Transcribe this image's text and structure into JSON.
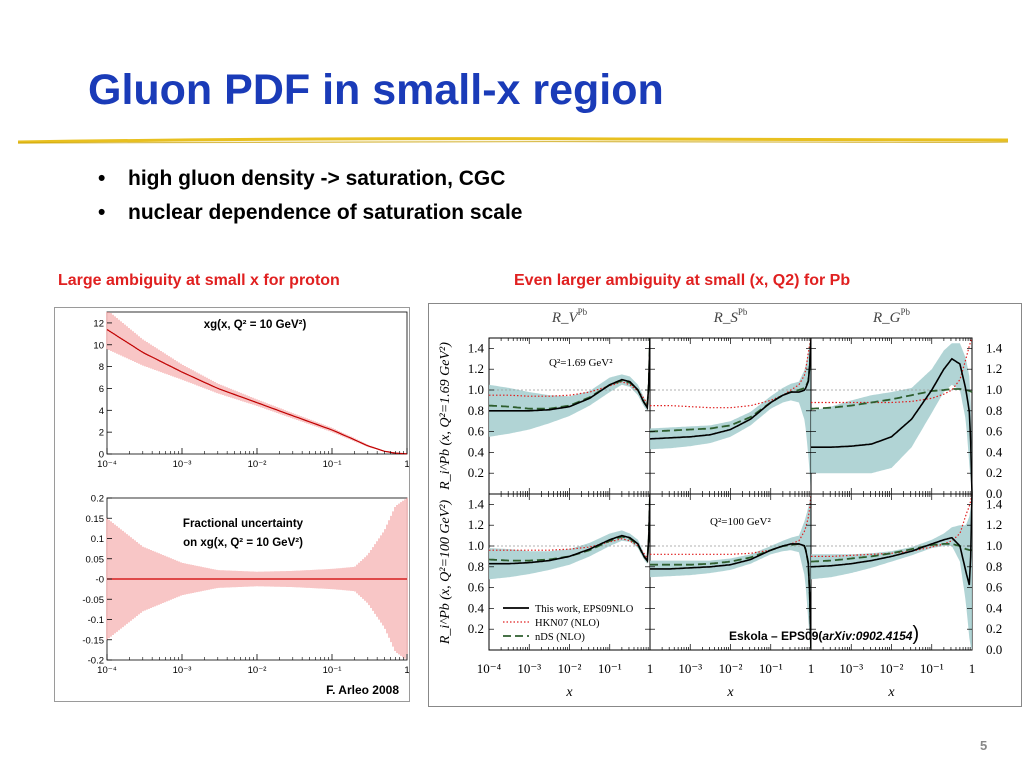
{
  "slide": {
    "title": "Gluon PDF in small-x region",
    "bullets": [
      "high gluon density -> saturation, CGC",
      "nuclear dependence of saturation scale"
    ],
    "caption_left": "Large ambiguity at small x for proton",
    "caption_right": "Even larger ambiguity at small (x, Q2) for Pb",
    "credit_left": "F. Arleo 2008",
    "credit_right_prefix": "Eskola – EPS09(",
    "credit_right_ref": "arXiv:0902.4154",
    "credit_right_suffix": ")",
    "page_number": "5",
    "colors": {
      "title": "#1a3bb8",
      "caption": "#e02020",
      "rule_gold": "#e8c020",
      "band_red": "#f08080",
      "band_teal": "#a9cfd0"
    }
  },
  "chart_data": [
    {
      "id": "proton-xg",
      "type": "line",
      "title": "xg(x, Q² = 10 GeV²)",
      "x_scale": "log",
      "xlim": [
        0.0001,
        1
      ],
      "ylim": [
        0,
        13
      ],
      "x_ticks": [
        0.0001,
        0.001,
        0.01,
        0.1,
        1
      ],
      "x_tick_labels": [
        "10⁻⁴",
        "10⁻³",
        "10⁻²",
        "10⁻¹",
        "1"
      ],
      "y_ticks": [
        0,
        2,
        4,
        6,
        8,
        10,
        12
      ],
      "y_tick_labels": [
        "0",
        "2",
        "4",
        "6",
        "8",
        "10",
        "12"
      ],
      "xlabel": "x",
      "x": [
        0.0001,
        0.0003,
        0.001,
        0.003,
        0.01,
        0.03,
        0.1,
        0.2,
        0.3,
        0.5,
        0.7,
        1.0
      ],
      "central": [
        11.4,
        9.3,
        7.5,
        6.0,
        4.7,
        3.5,
        2.2,
        1.3,
        0.75,
        0.25,
        0.08,
        0.02
      ],
      "err": [
        1.8,
        1.2,
        0.7,
        0.45,
        0.3,
        0.25,
        0.2,
        0.15,
        0.1,
        0.05,
        0.03,
        0.02
      ]
    },
    {
      "id": "proton-frac",
      "type": "line",
      "title": "Fractional uncertainty on xg(x, Q² = 10 GeV²)",
      "title_lines": [
        "Fractional uncertainty",
        "on xg(x, Q² = 10 GeV²)"
      ],
      "x_scale": "log",
      "xlim": [
        0.0001,
        1
      ],
      "ylim": [
        -0.2,
        0.2
      ],
      "x_ticks": [
        0.0001,
        0.001,
        0.01,
        0.1,
        1
      ],
      "x_tick_labels": [
        "10⁻⁴",
        "10⁻³",
        "10⁻²",
        "10⁻¹",
        "1"
      ],
      "y_ticks": [
        -0.2,
        -0.15,
        -0.1,
        -0.05,
        0,
        0.05,
        0.1,
        0.15,
        0.2
      ],
      "y_tick_labels": [
        "-0.2",
        "-0.15",
        "-0.1",
        "-0.05",
        "-0",
        "0.05",
        "0.1",
        "0.15",
        "0.2"
      ],
      "xlabel": "x",
      "x": [
        0.0001,
        0.0003,
        0.001,
        0.003,
        0.01,
        0.03,
        0.1,
        0.2,
        0.3,
        0.5,
        0.7,
        1.0
      ],
      "err": [
        0.15,
        0.08,
        0.04,
        0.022,
        0.018,
        0.02,
        0.025,
        0.03,
        0.06,
        0.12,
        0.18,
        0.2
      ]
    },
    {
      "id": "pb-eps09",
      "type": "line",
      "x_scale": "log",
      "xlim": [
        0.0001,
        1
      ],
      "ylim": [
        0,
        1.5
      ],
      "columns": [
        "R_V^Pb",
        "R_S^Pb",
        "R_G^Pb"
      ],
      "rows": [
        {
          "label": "Q²=1.69 GeV²",
          "ylabel": "R_i^Pb (x, Q²=1.69 GeV²)"
        },
        {
          "label": "Q²=100 GeV²",
          "ylabel": "R_i^Pb (x, Q²=100 GeV²)"
        }
      ],
      "y_ticks": [
        0,
        0.2,
        0.4,
        0.6,
        0.8,
        1.0,
        1.2,
        1.4
      ],
      "y_tick_labels": [
        "0.0",
        "0.2",
        "0.4",
        "0.6",
        "0.8",
        "1.0",
        "1.2",
        "1.4"
      ],
      "x_tick_labels": [
        "10⁻⁴",
        "10⁻³",
        "10⁻²",
        "10⁻¹",
        "1"
      ],
      "xlabel": "x",
      "legend": [
        "This work, EPS09NLO",
        "HKN07 (NLO)",
        "nDS (NLO)"
      ],
      "legend_position": "bottom-left",
      "log10x": [
        -4,
        -3.5,
        -3,
        -2.5,
        -2,
        -1.5,
        -1,
        -0.7,
        -0.5,
        -0.3,
        -0.15,
        -0.05,
        0
      ],
      "panels": [
        {
          "row": 0,
          "col": 0,
          "eps09": [
            0.8,
            0.8,
            0.8,
            0.81,
            0.84,
            0.92,
            1.05,
            1.1,
            1.08,
            1.0,
            0.88,
            0.82,
            1.5
          ],
          "band_lo": [
            0.55,
            0.58,
            0.62,
            0.68,
            0.75,
            0.85,
            0.98,
            1.05,
            1.03,
            0.95,
            0.84,
            0.79,
            1.5
          ],
          "band_hi": [
            1.05,
            1.02,
            0.98,
            0.95,
            0.94,
            0.99,
            1.12,
            1.15,
            1.13,
            1.05,
            0.93,
            0.86,
            1.5
          ],
          "hkn07": [
            0.95,
            0.95,
            0.94,
            0.94,
            0.95,
            0.98,
            1.04,
            1.08,
            1.05,
            0.99,
            0.92,
            0.85,
            1.5
          ],
          "nds": [
            0.85,
            0.84,
            0.82,
            0.82,
            0.85,
            0.93,
            1.05,
            1.09,
            1.07,
            1.0,
            0.88,
            0.83,
            1.5
          ]
        },
        {
          "row": 0,
          "col": 1,
          "eps09": [
            0.53,
            0.54,
            0.55,
            0.57,
            0.62,
            0.72,
            0.88,
            0.95,
            0.98,
            0.98,
            1.0,
            1.1,
            1.5
          ],
          "band_lo": [
            0.43,
            0.44,
            0.46,
            0.49,
            0.55,
            0.66,
            0.82,
            0.88,
            0.9,
            0.88,
            0.7,
            0.3,
            0.0
          ],
          "band_hi": [
            0.63,
            0.64,
            0.65,
            0.66,
            0.7,
            0.79,
            0.94,
            1.02,
            1.06,
            1.08,
            1.2,
            1.4,
            1.5
          ],
          "hkn07": [
            0.85,
            0.85,
            0.84,
            0.83,
            0.83,
            0.85,
            0.9,
            0.95,
            1.0,
            1.05,
            1.15,
            1.4,
            1.5
          ],
          "nds": [
            0.6,
            0.61,
            0.62,
            0.63,
            0.66,
            0.74,
            0.88,
            0.95,
            0.98,
            1.0,
            1.02,
            1.1,
            1.5
          ]
        },
        {
          "row": 0,
          "col": 2,
          "eps09": [
            0.45,
            0.45,
            0.46,
            0.48,
            0.55,
            0.72,
            1.0,
            1.2,
            1.3,
            1.25,
            1.0,
            0.75,
            0.0
          ],
          "band_lo": [
            0.2,
            0.2,
            0.2,
            0.2,
            0.25,
            0.45,
            0.78,
            0.98,
            1.05,
            1.0,
            0.7,
            0.2,
            0.0
          ],
          "band_hi": [
            0.8,
            0.84,
            0.9,
            0.95,
            0.98,
            1.02,
            1.2,
            1.38,
            1.45,
            1.45,
            1.3,
            1.1,
            0.4
          ],
          "hkn07": [
            0.88,
            0.88,
            0.88,
            0.88,
            0.88,
            0.89,
            0.92,
            0.96,
            1.0,
            1.1,
            1.3,
            1.45,
            1.5
          ],
          "nds": [
            0.82,
            0.83,
            0.85,
            0.88,
            0.91,
            0.95,
            0.99,
            1.0,
            1.01,
            1.01,
            1.0,
            0.99,
            0.98
          ]
        },
        {
          "row": 1,
          "col": 0,
          "eps09": [
            0.83,
            0.83,
            0.84,
            0.86,
            0.9,
            0.97,
            1.06,
            1.1,
            1.08,
            1.02,
            0.9,
            0.85,
            1.5
          ],
          "band_lo": [
            0.68,
            0.7,
            0.73,
            0.77,
            0.82,
            0.9,
            1.0,
            1.05,
            1.04,
            0.98,
            0.87,
            0.82,
            1.5
          ],
          "band_hi": [
            0.98,
            0.97,
            0.95,
            0.95,
            0.97,
            1.03,
            1.12,
            1.15,
            1.12,
            1.06,
            0.93,
            0.88,
            1.5
          ],
          "hkn07": [
            0.96,
            0.96,
            0.96,
            0.96,
            0.97,
            0.99,
            1.04,
            1.07,
            1.05,
            1.0,
            0.93,
            0.87,
            1.5
          ],
          "nds": [
            0.87,
            0.86,
            0.86,
            0.87,
            0.9,
            0.96,
            1.05,
            1.09,
            1.07,
            1.01,
            0.9,
            0.85,
            1.5
          ]
        },
        {
          "row": 1,
          "col": 1,
          "eps09": [
            0.78,
            0.78,
            0.79,
            0.8,
            0.82,
            0.87,
            0.96,
            1.0,
            1.02,
            1.02,
            1.0,
            0.8,
            0.0
          ],
          "band_lo": [
            0.7,
            0.71,
            0.72,
            0.74,
            0.77,
            0.83,
            0.92,
            0.95,
            0.96,
            0.94,
            0.7,
            0.2,
            0.0
          ],
          "band_hi": [
            0.86,
            0.86,
            0.86,
            0.86,
            0.88,
            0.92,
            1.0,
            1.05,
            1.08,
            1.1,
            1.25,
            1.4,
            1.5
          ],
          "hkn07": [
            0.92,
            0.92,
            0.92,
            0.92,
            0.92,
            0.93,
            0.96,
            1.0,
            1.02,
            1.05,
            1.15,
            1.3,
            1.5
          ],
          "nds": [
            0.82,
            0.82,
            0.82,
            0.83,
            0.85,
            0.89,
            0.96,
            1.0,
            1.01,
            1.02,
            1.0,
            0.8,
            0.0
          ]
        },
        {
          "row": 1,
          "col": 2,
          "eps09": [
            0.8,
            0.81,
            0.83,
            0.86,
            0.9,
            0.95,
            1.02,
            1.06,
            1.08,
            1.0,
            0.75,
            0.6,
            1.5
          ],
          "band_lo": [
            0.68,
            0.7,
            0.74,
            0.79,
            0.85,
            0.91,
            0.98,
            1.0,
            1.0,
            0.85,
            0.45,
            0.05,
            0.0
          ],
          "band_hi": [
            0.92,
            0.92,
            0.92,
            0.93,
            0.95,
            0.99,
            1.06,
            1.12,
            1.18,
            1.2,
            1.2,
            1.3,
            1.5
          ],
          "hkn07": [
            0.9,
            0.9,
            0.91,
            0.92,
            0.93,
            0.95,
            0.99,
            1.02,
            1.05,
            1.12,
            1.3,
            1.4,
            1.5
          ],
          "nds": [
            0.85,
            0.86,
            0.88,
            0.9,
            0.93,
            0.97,
            1.01,
            1.02,
            1.02,
            1.0,
            0.97,
            0.96,
            0.96
          ]
        }
      ]
    }
  ]
}
